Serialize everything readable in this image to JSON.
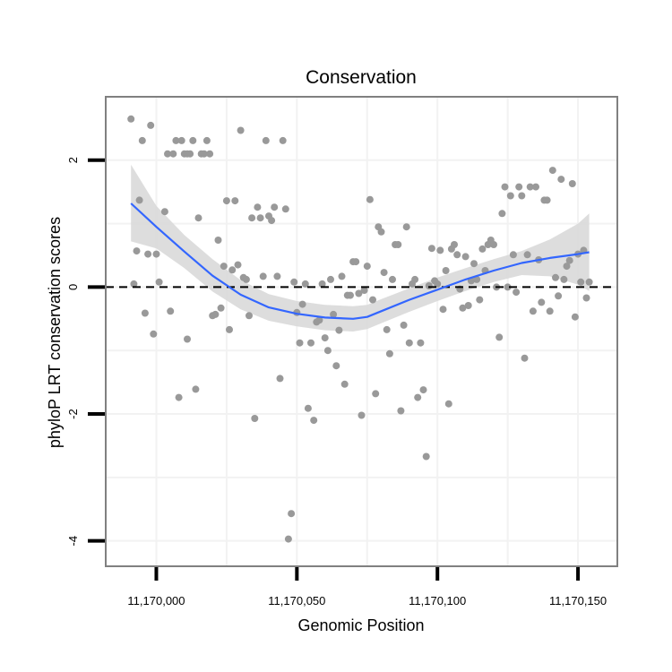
{
  "chart_data": {
    "type": "scatter",
    "title": "Conservation",
    "xlabel": "Genomic Position",
    "ylabel": "phyloP LRT conservation scores",
    "xlim": [
      11169982,
      11170164
    ],
    "ylim": [
      -4.4,
      3.0
    ],
    "x_ticks": [
      11170000,
      11170050,
      11170100,
      11170150
    ],
    "x_tick_labels": [
      "11,170,000",
      "11,170,050",
      "11,170,100",
      "11,170,150"
    ],
    "y_ticks": [
      -4,
      -2,
      0,
      2
    ],
    "y_tick_labels": [
      "-4",
      "-2",
      "0",
      "2"
    ],
    "reference_line": 0,
    "colors": {
      "points": "#999999",
      "smooth": "#3366ff",
      "ribbon": "#d9d9d9",
      "grid": "#f2f2f2",
      "panel_border": "#808080",
      "reference": "#000000"
    },
    "points": [
      [
        11169991,
        2.65
      ],
      [
        11169992,
        0.05
      ],
      [
        11169993,
        0.57
      ],
      [
        11169994,
        1.37
      ],
      [
        11169995,
        2.31
      ],
      [
        11169996,
        -0.41
      ],
      [
        11169997,
        0.52
      ],
      [
        11169998,
        2.55
      ],
      [
        11169999,
        -0.74
      ],
      [
        11170000,
        0.52
      ],
      [
        11170001,
        0.08
      ],
      [
        11170003,
        1.19
      ],
      [
        11170004,
        2.1
      ],
      [
        11170005,
        -0.38
      ],
      [
        11170006,
        2.1
      ],
      [
        11170007,
        2.31
      ],
      [
        11170008,
        -1.74
      ],
      [
        11170009,
        2.31
      ],
      [
        11170010,
        2.1
      ],
      [
        11170011,
        -0.82
      ],
      [
        11170011,
        2.1
      ],
      [
        11170012,
        2.1
      ],
      [
        11170013,
        2.31
      ],
      [
        11170014,
        -1.61
      ],
      [
        11170015,
        1.09
      ],
      [
        11170016,
        2.1
      ],
      [
        11170017,
        2.1
      ],
      [
        11170018,
        2.31
      ],
      [
        11170019,
        2.1
      ],
      [
        11170020,
        -0.45
      ],
      [
        11170021,
        -0.43
      ],
      [
        11170022,
        0.74
      ],
      [
        11170023,
        -0.33
      ],
      [
        11170024,
        0.33
      ],
      [
        11170025,
        1.36
      ],
      [
        11170026,
        -0.67
      ],
      [
        11170027,
        0.27
      ],
      [
        11170028,
        1.36
      ],
      [
        11170029,
        0.35
      ],
      [
        11170030,
        2.47
      ],
      [
        11170031,
        0.15
      ],
      [
        11170032,
        0.12
      ],
      [
        11170033,
        -0.45
      ],
      [
        11170034,
        1.09
      ],
      [
        11170035,
        -2.07
      ],
      [
        11170036,
        1.26
      ],
      [
        11170037,
        1.09
      ],
      [
        11170038,
        0.17
      ],
      [
        11170039,
        2.31
      ],
      [
        11170040,
        1.12
      ],
      [
        11170041,
        1.05
      ],
      [
        11170042,
        1.26
      ],
      [
        11170043,
        0.17
      ],
      [
        11170044,
        -1.44
      ],
      [
        11170045,
        2.31
      ],
      [
        11170046,
        1.23
      ],
      [
        11170047,
        -3.97
      ],
      [
        11170048,
        -3.57
      ],
      [
        11170049,
        0.08
      ],
      [
        11170050,
        -0.4
      ],
      [
        11170051,
        -0.88
      ],
      [
        11170052,
        -0.27
      ],
      [
        11170053,
        0.05
      ],
      [
        11170054,
        -1.91
      ],
      [
        11170055,
        -0.88
      ],
      [
        11170056,
        -2.1
      ],
      [
        11170057,
        -0.55
      ],
      [
        11170058,
        -0.52
      ],
      [
        11170059,
        0.05
      ],
      [
        11170060,
        -0.8
      ],
      [
        11170061,
        -1.0
      ],
      [
        11170062,
        0.12
      ],
      [
        11170063,
        -0.43
      ],
      [
        11170064,
        -1.24
      ],
      [
        11170065,
        -0.68
      ],
      [
        11170066,
        0.17
      ],
      [
        11170067,
        -1.53
      ],
      [
        11170068,
        -0.13
      ],
      [
        11170069,
        -0.13
      ],
      [
        11170070,
        0.4
      ],
      [
        11170071,
        0.4
      ],
      [
        11170072,
        -0.1
      ],
      [
        11170073,
        -2.02
      ],
      [
        11170074,
        -0.05
      ],
      [
        11170075,
        0.33
      ],
      [
        11170076,
        1.38
      ],
      [
        11170077,
        -0.2
      ],
      [
        11170078,
        -1.68
      ],
      [
        11170079,
        0.95
      ],
      [
        11170080,
        0.87
      ],
      [
        11170081,
        0.23
      ],
      [
        11170082,
        -0.67
      ],
      [
        11170083,
        -1.05
      ],
      [
        11170084,
        0.12
      ],
      [
        11170085,
        0.67
      ],
      [
        11170086,
        0.67
      ],
      [
        11170087,
        -1.95
      ],
      [
        11170088,
        -0.6
      ],
      [
        11170089,
        0.95
      ],
      [
        11170090,
        -0.88
      ],
      [
        11170091,
        0.05
      ],
      [
        11170092,
        0.12
      ],
      [
        11170093,
        -1.74
      ],
      [
        11170094,
        -0.88
      ],
      [
        11170095,
        -1.62
      ],
      [
        11170096,
        -2.67
      ],
      [
        11170097,
        0.02
      ],
      [
        11170098,
        0.61
      ],
      [
        11170099,
        0.1
      ],
      [
        11170100,
        0.05
      ],
      [
        11170101,
        0.58
      ],
      [
        11170102,
        -0.35
      ],
      [
        11170103,
        0.26
      ],
      [
        11170104,
        -1.84
      ],
      [
        11170105,
        0.6
      ],
      [
        11170106,
        0.67
      ],
      [
        11170107,
        0.51
      ],
      [
        11170108,
        -0.03
      ],
      [
        11170109,
        -0.33
      ],
      [
        11170110,
        0.48
      ],
      [
        11170111,
        -0.29
      ],
      [
        11170112,
        0.1
      ],
      [
        11170113,
        0.37
      ],
      [
        11170114,
        0.12
      ],
      [
        11170115,
        -0.2
      ],
      [
        11170116,
        0.6
      ],
      [
        11170117,
        0.26
      ],
      [
        11170118,
        0.67
      ],
      [
        11170119,
        0.74
      ],
      [
        11170120,
        0.67
      ],
      [
        11170121,
        0.0
      ],
      [
        11170122,
        -0.79
      ],
      [
        11170123,
        1.16
      ],
      [
        11170124,
        1.58
      ],
      [
        11170125,
        0.0
      ],
      [
        11170126,
        1.44
      ],
      [
        11170127,
        0.51
      ],
      [
        11170128,
        -0.08
      ],
      [
        11170129,
        1.58
      ],
      [
        11170130,
        1.44
      ],
      [
        11170131,
        -1.12
      ],
      [
        11170132,
        0.51
      ],
      [
        11170133,
        1.58
      ],
      [
        11170134,
        -0.38
      ],
      [
        11170135,
        1.58
      ],
      [
        11170136,
        0.43
      ],
      [
        11170137,
        -0.24
      ],
      [
        11170138,
        1.37
      ],
      [
        11170139,
        1.37
      ],
      [
        11170140,
        -0.38
      ],
      [
        11170141,
        1.84
      ],
      [
        11170142,
        0.15
      ],
      [
        11170143,
        -0.14
      ],
      [
        11170144,
        1.7
      ],
      [
        11170145,
        0.12
      ],
      [
        11170146,
        0.33
      ],
      [
        11170147,
        0.42
      ],
      [
        11170148,
        1.63
      ],
      [
        11170149,
        -0.47
      ],
      [
        11170150,
        0.52
      ],
      [
        11170151,
        0.08
      ],
      [
        11170152,
        0.58
      ],
      [
        11170153,
        -0.17
      ],
      [
        11170154,
        0.08
      ]
    ],
    "smooth": [
      [
        11169991,
        1.32,
        0.72,
        1.93
      ],
      [
        11170000,
        0.95,
        0.61,
        1.28
      ],
      [
        11170010,
        0.56,
        0.3,
        0.82
      ],
      [
        11170020,
        0.18,
        -0.07,
        0.44
      ],
      [
        11170030,
        -0.12,
        -0.35,
        0.11
      ],
      [
        11170040,
        -0.32,
        -0.53,
        -0.11
      ],
      [
        11170050,
        -0.42,
        -0.62,
        -0.22
      ],
      [
        11170060,
        -0.48,
        -0.68,
        -0.28
      ],
      [
        11170070,
        -0.5,
        -0.7,
        -0.3
      ],
      [
        11170075,
        -0.47,
        -0.66,
        -0.28
      ],
      [
        11170080,
        -0.38,
        -0.57,
        -0.19
      ],
      [
        11170090,
        -0.2,
        -0.39,
        -0.02
      ],
      [
        11170100,
        -0.04,
        -0.22,
        0.15
      ],
      [
        11170110,
        0.12,
        -0.06,
        0.3
      ],
      [
        11170120,
        0.26,
        0.08,
        0.44
      ],
      [
        11170130,
        0.38,
        0.19,
        0.57
      ],
      [
        11170140,
        0.46,
        0.17,
        0.75
      ],
      [
        11170150,
        0.52,
        0.04,
        1.0
      ],
      [
        11170154,
        0.55,
        -0.06,
        1.16
      ]
    ]
  }
}
